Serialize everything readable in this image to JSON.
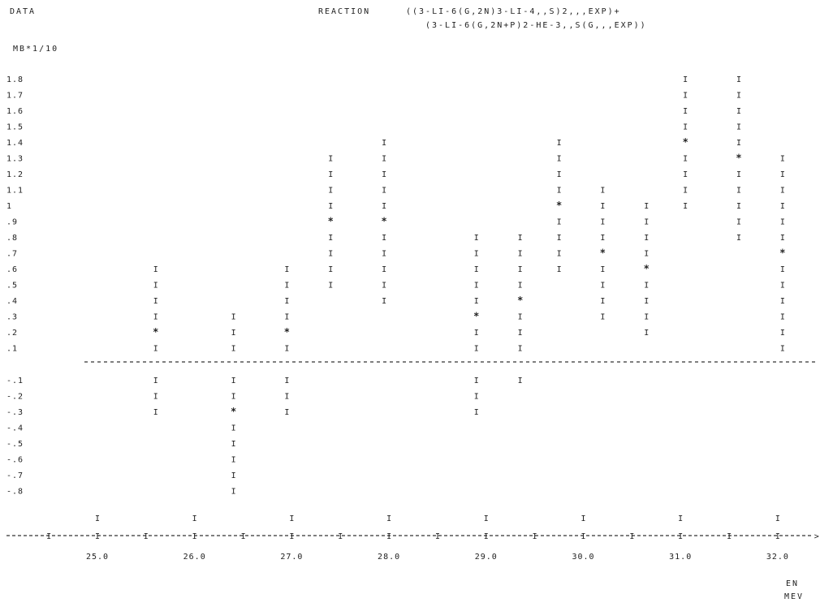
{
  "header": {
    "data_label": "DATA",
    "reaction_label": "REACTION",
    "reaction_line1": "((3-LI-6(G,2N)3-LI-4,,S)2,,,EXP)+",
    "reaction_line2": "(3-LI-6(G,2N+P)2-HE-3,,S(G,,,EXP))",
    "y_unit": "MB*1/10"
  },
  "chart_data": {
    "type": "scatter",
    "xlabel": "EN MEV",
    "ylabel": "MB*1/10",
    "xlim": [
      24.5,
      32.6
    ],
    "ylim": [
      -0.85,
      1.85
    ],
    "grid": false,
    "legend": "none",
    "y_ticks": [
      "1.8",
      "1.7",
      "1.6",
      "1.5",
      "1.4",
      "1.3",
      "1.2",
      "1.1",
      "1",
      ".9",
      ".8",
      ".7",
      ".6",
      ".5",
      ".4",
      ".3",
      ".2",
      ".1",
      "-.1",
      "-.2",
      "-.3",
      "-.4",
      "-.5",
      "-.6",
      "-.7",
      "-.8"
    ],
    "y_tick_values": [
      1.8,
      1.7,
      1.6,
      1.5,
      1.4,
      1.3,
      1.2,
      1.1,
      1.0,
      0.9,
      0.8,
      0.7,
      0.6,
      0.5,
      0.4,
      0.3,
      0.2,
      0.1,
      -0.1,
      -0.2,
      -0.3,
      -0.4,
      -0.5,
      -0.6,
      -0.7,
      -0.8
    ],
    "x_ticks": [
      "25.0",
      "26.0",
      "27.0",
      "28.0",
      "29.0",
      "30.0",
      "31.0",
      "32.0"
    ],
    "x_tick_values": [
      25.0,
      26.0,
      27.0,
      28.0,
      29.0,
      30.0,
      31.0,
      32.0
    ],
    "points": [
      {
        "x": 25.6,
        "y": 0.2,
        "ylo": -0.3,
        "yhi": 0.6
      },
      {
        "x": 26.4,
        "y": -0.3,
        "ylo": -0.8,
        "yhi": 0.3
      },
      {
        "x": 26.95,
        "y": 0.2,
        "ylo": -0.3,
        "yhi": 0.6
      },
      {
        "x": 27.4,
        "y": 0.9,
        "ylo": 0.5,
        "yhi": 1.3
      },
      {
        "x": 27.95,
        "y": 0.9,
        "ylo": 0.4,
        "yhi": 1.4
      },
      {
        "x": 28.9,
        "y": 0.3,
        "ylo": -0.3,
        "yhi": 0.8
      },
      {
        "x": 29.35,
        "y": 0.4,
        "ylo": -0.1,
        "yhi": 0.8
      },
      {
        "x": 29.75,
        "y": 1.0,
        "ylo": 0.6,
        "yhi": 1.4
      },
      {
        "x": 30.2,
        "y": 0.7,
        "ylo": 0.3,
        "yhi": 1.1
      },
      {
        "x": 30.65,
        "y": 0.6,
        "ylo": 0.2,
        "yhi": 1.0
      },
      {
        "x": 31.05,
        "y": 1.4,
        "ylo": 1.0,
        "yhi": 1.8
      },
      {
        "x": 31.6,
        "y": 1.3,
        "ylo": 0.8,
        "yhi": 1.8
      },
      {
        "x": 32.05,
        "y": 0.7,
        "ylo": 0.1,
        "yhi": 1.3
      }
    ]
  }
}
